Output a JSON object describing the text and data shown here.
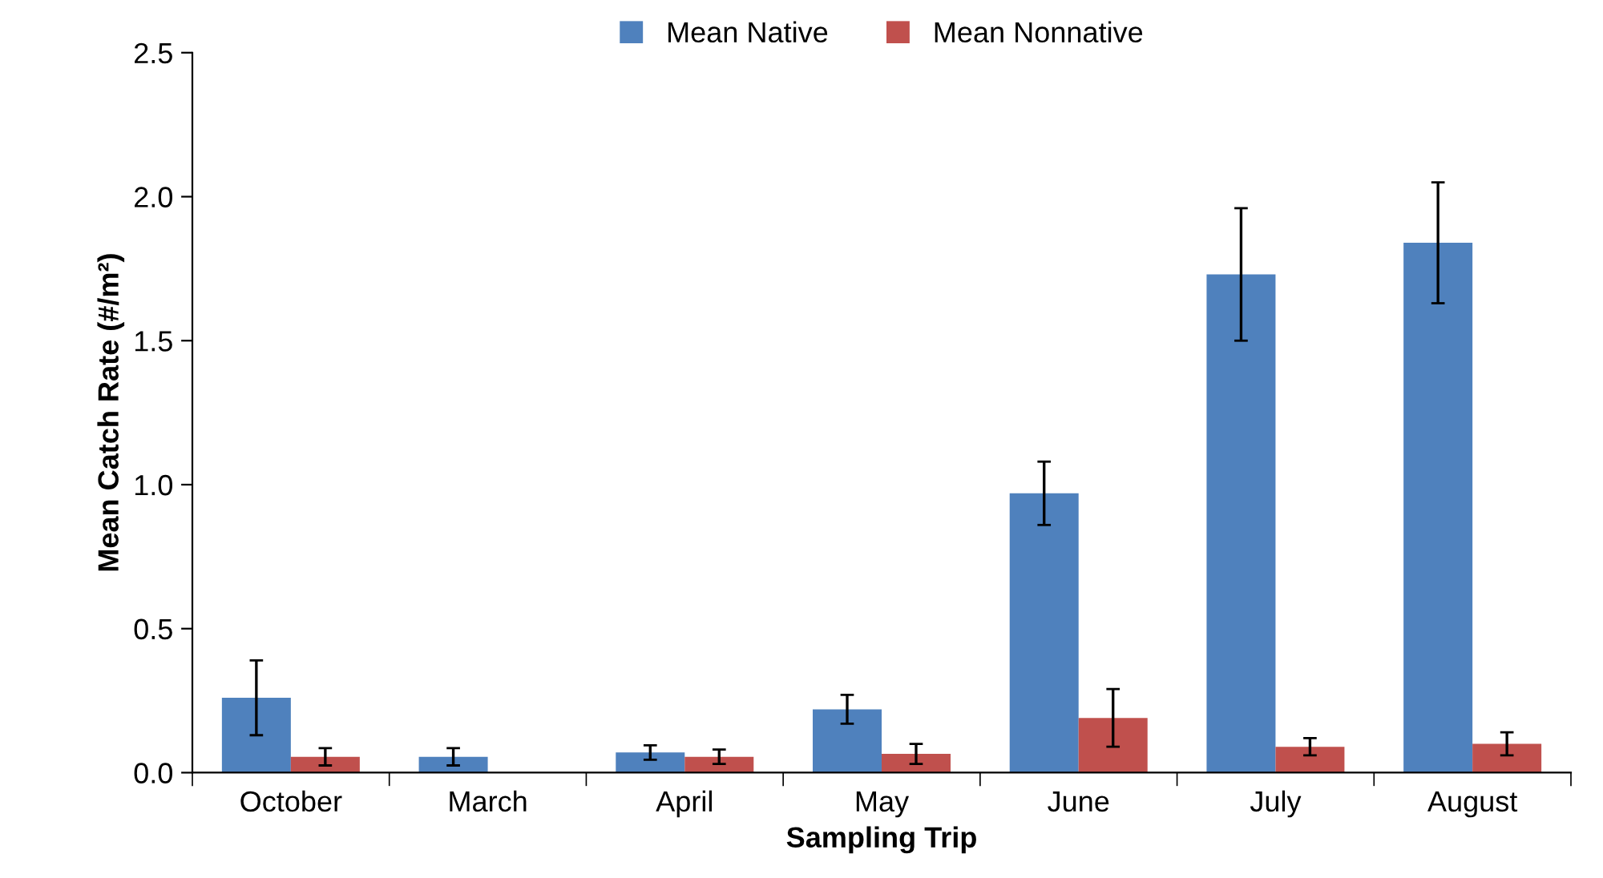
{
  "chart_data": {
    "type": "bar",
    "xlabel": "Sampling Trip",
    "ylabel": "Mean Catch Rate (#/m²)",
    "categories": [
      "October",
      "March",
      "April",
      "May",
      "June",
      "July",
      "August"
    ],
    "series": [
      {
        "name": "Mean Native",
        "color": "#4f81bd",
        "values": [
          0.26,
          0.055,
          0.07,
          0.22,
          0.97,
          1.73,
          1.84
        ],
        "errors": [
          0.13,
          0.03,
          0.025,
          0.05,
          0.11,
          0.23,
          0.21
        ]
      },
      {
        "name": "Mean Nonnative",
        "color": "#c0504d",
        "values": [
          0.055,
          0,
          0.055,
          0.065,
          0.19,
          0.09,
          0.1
        ],
        "errors": [
          0.03,
          null,
          0.025,
          0.035,
          0.1,
          0.03,
          0.04
        ]
      }
    ],
    "ylim": [
      0,
      2.5
    ],
    "yticks": [
      {
        "value": 0,
        "label": "0.0"
      },
      {
        "value": 0.5,
        "label": "0.5"
      },
      {
        "value": 1,
        "label": "1.0"
      },
      {
        "value": 1.5,
        "label": "1.5"
      },
      {
        "value": 2,
        "label": "2.0"
      },
      {
        "value": 2.5,
        "label": "2.5"
      }
    ],
    "legend": "top",
    "grid": false
  }
}
